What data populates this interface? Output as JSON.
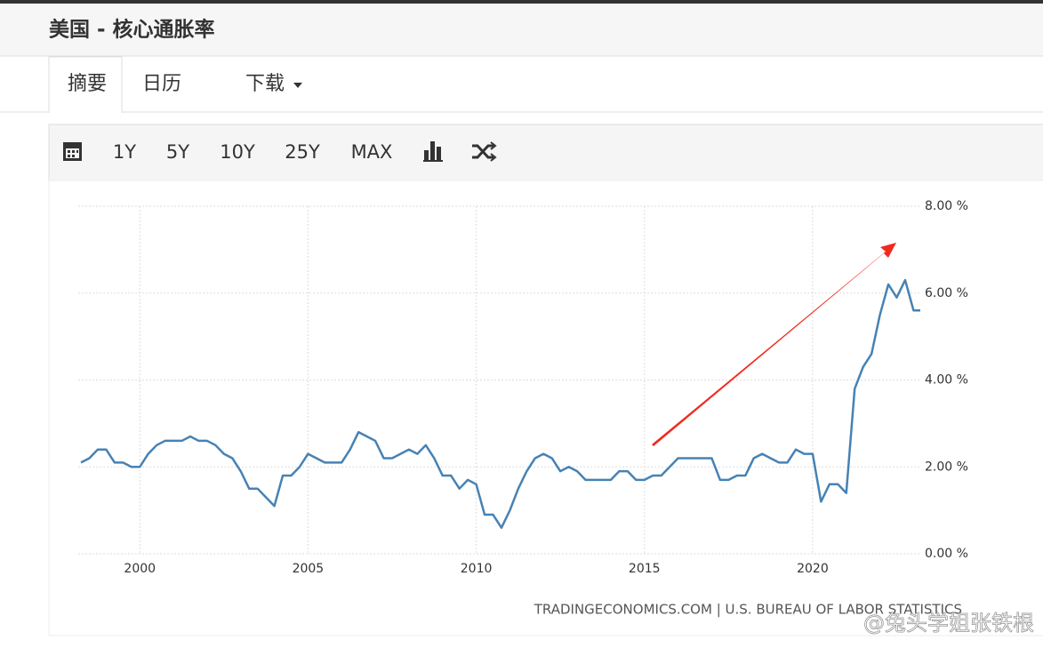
{
  "header": {
    "title": "美国 - 核心通胀率"
  },
  "tabs": [
    "摘要",
    "日历",
    "下载"
  ],
  "toolbar": [
    "1Y",
    "5Y",
    "10Y",
    "25Y",
    "MAX"
  ],
  "source": "TRADINGECONOMICS.COM | U.S. BUREAU OF LABOR STATISTICS",
  "watermark": "@兔头学姐张铁根",
  "chart_data": {
    "type": "line",
    "x": [
      1998.25,
      1998.5,
      1998.75,
      1999,
      1999.25,
      1999.5,
      1999.75,
      2000,
      2000.25,
      2000.5,
      2000.75,
      2001,
      2001.25,
      2001.5,
      2001.75,
      2002,
      2002.25,
      2002.5,
      2002.75,
      2003,
      2003.25,
      2003.5,
      2003.75,
      2004,
      2004.25,
      2004.5,
      2004.75,
      2005,
      2005.25,
      2005.5,
      2005.75,
      2006,
      2006.25,
      2006.5,
      2006.75,
      2007,
      2007.25,
      2007.5,
      2007.75,
      2008,
      2008.25,
      2008.5,
      2008.75,
      2009,
      2009.25,
      2009.5,
      2009.75,
      2010,
      2010.25,
      2010.5,
      2010.75,
      2011,
      2011.25,
      2011.5,
      2011.75,
      2012,
      2012.25,
      2012.5,
      2012.75,
      2013,
      2013.25,
      2013.5,
      2013.75,
      2014,
      2014.25,
      2014.5,
      2014.75,
      2015,
      2015.25,
      2015.5,
      2015.75,
      2016,
      2016.25,
      2016.5,
      2016.75,
      2017,
      2017.25,
      2017.5,
      2017.75,
      2018,
      2018.25,
      2018.5,
      2018.75,
      2019,
      2019.25,
      2019.5,
      2019.75,
      2020,
      2020.25,
      2020.5,
      2020.75,
      2021,
      2021.25,
      2021.5,
      2021.75,
      2022,
      2022.25,
      2022.5,
      2022.75,
      2023,
      2023.2
    ],
    "series": [
      {
        "color": "#4682b4",
        "values": [
          2.1,
          2.2,
          2.4,
          2.4,
          2.1,
          2.1,
          2.0,
          2.0,
          2.3,
          2.5,
          2.6,
          2.6,
          2.6,
          2.7,
          2.6,
          2.6,
          2.5,
          2.3,
          2.2,
          1.9,
          1.5,
          1.5,
          1.3,
          1.1,
          1.8,
          1.8,
          2.0,
          2.3,
          2.2,
          2.1,
          2.1,
          2.1,
          2.4,
          2.8,
          2.7,
          2.6,
          2.2,
          2.2,
          2.3,
          2.4,
          2.3,
          2.5,
          2.2,
          1.8,
          1.8,
          1.5,
          1.7,
          1.6,
          0.9,
          0.9,
          0.6,
          1.0,
          1.5,
          1.9,
          2.2,
          2.3,
          2.2,
          1.9,
          2.0,
          1.9,
          1.7,
          1.7,
          1.7,
          1.7,
          1.9,
          1.9,
          1.7,
          1.7,
          1.8,
          1.8,
          2.0,
          2.2,
          2.2,
          2.2,
          2.2,
          2.2,
          1.7,
          1.7,
          1.8,
          1.8,
          2.2,
          2.3,
          2.2,
          2.1,
          2.1,
          2.4,
          2.3,
          2.3,
          1.2,
          1.6,
          1.6,
          1.4,
          3.8,
          4.3,
          4.6,
          5.5,
          6.2,
          5.9,
          6.3,
          5.6,
          5.6
        ]
      }
    ],
    "xlim": [
      1998.17,
      2023.2
    ],
    "xticks": [
      2000,
      2005,
      2010,
      2015,
      2020
    ],
    "ylim": [
      0,
      8
    ],
    "yticks": [
      {
        "value": 0,
        "label": "0.00 %"
      },
      {
        "value": 2,
        "label": "2.00 %"
      },
      {
        "value": 4,
        "label": "4.00 %"
      },
      {
        "value": 6,
        "label": "6.00 %"
      },
      {
        "value": 8,
        "label": "8.00 %"
      }
    ],
    "grid": true
  }
}
